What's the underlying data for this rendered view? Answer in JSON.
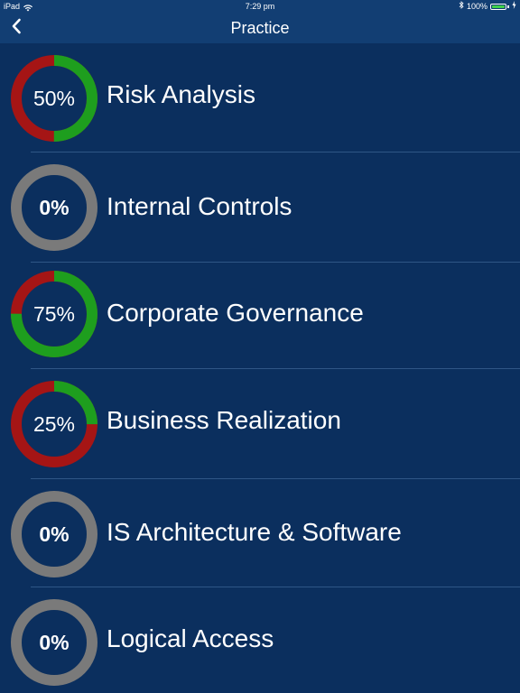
{
  "status_bar": {
    "device": "iPad",
    "time": "7:29 pm",
    "battery": "100%",
    "battery_level": 1.0
  },
  "nav": {
    "title": "Practice",
    "back_icon": "chevron-left-icon"
  },
  "colors": {
    "correct": "#1e9e1e",
    "incorrect": "#a51515",
    "empty": "#7a7a7a",
    "background": "#0b2f5e",
    "bar": "#123e73"
  },
  "topics": [
    {
      "label": "Risk Analysis",
      "score": "50%",
      "progress": 0.5,
      "attempted": true
    },
    {
      "label": "Internal Controls",
      "score": "0%",
      "progress": 0,
      "attempted": false
    },
    {
      "label": "Corporate Governance",
      "score": "75%",
      "progress": 0.75,
      "attempted": true
    },
    {
      "label": "Business Realization",
      "score": "25%",
      "progress": 0.25,
      "attempted": true
    },
    {
      "label": "IS Architecture & Software",
      "score": "0%",
      "progress": 0,
      "attempted": false
    },
    {
      "label": "Logical Access",
      "score": "0%",
      "progress": 0,
      "attempted": false
    }
  ]
}
